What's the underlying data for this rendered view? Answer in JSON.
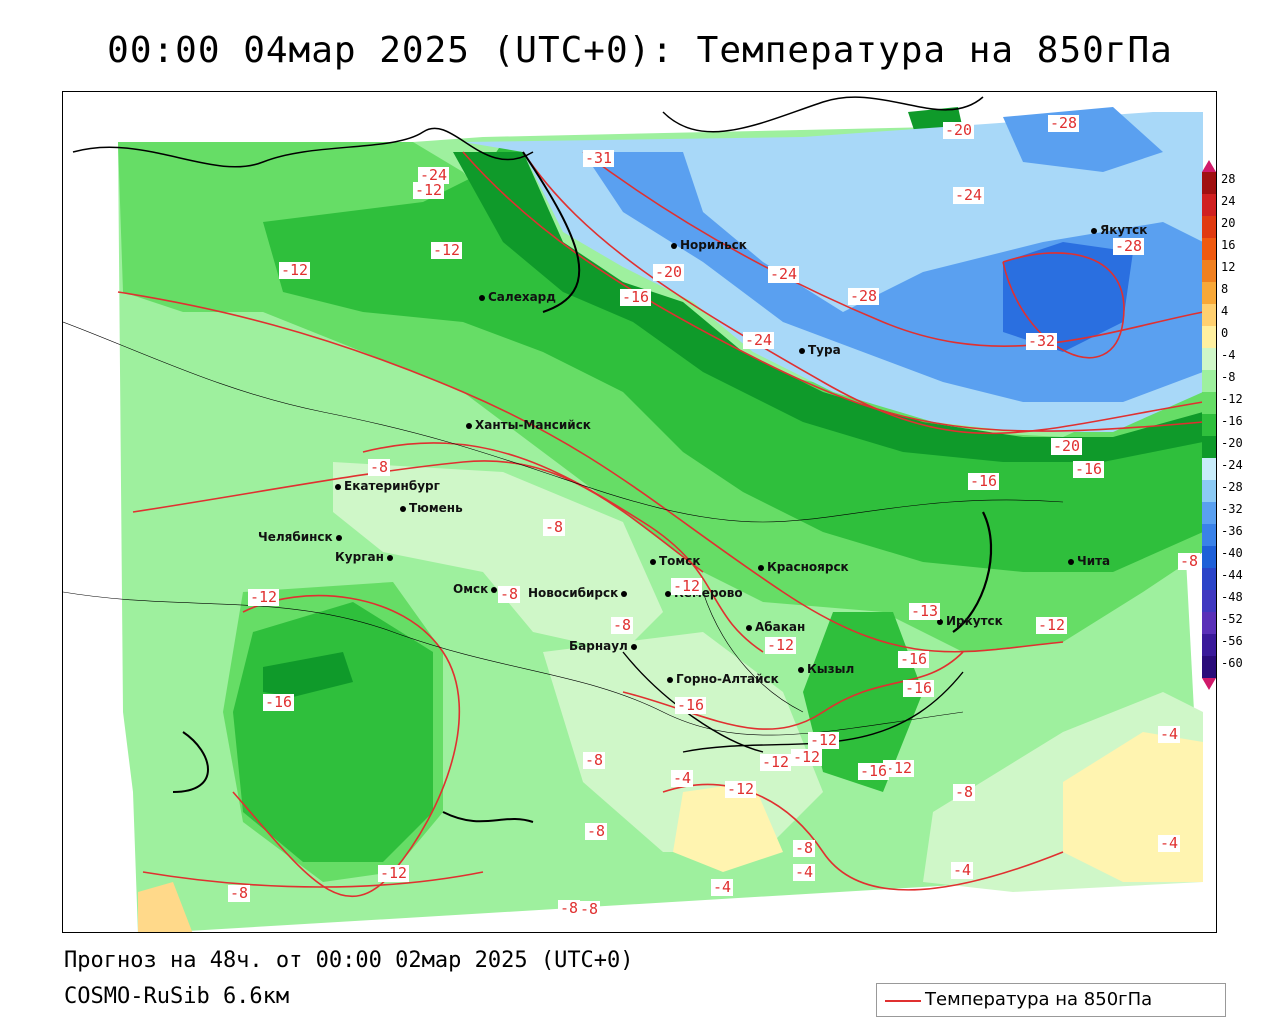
{
  "header": {
    "title": "00:00 04мар 2025 (UTC+0): Температура на 850гПа"
  },
  "footer": {
    "forecast": "Прогноз на 48ч. от 00:00 02мар 2025 (UTC+0)",
    "model": "COSMO-RuSib 6.6км",
    "legend": "Температура на 850гПа"
  },
  "colors": {
    "contour": "#e03030",
    "t_m32": "#2a6fe0",
    "t_m28": "#5aa0f0",
    "t_m24": "#a8d8f8",
    "t_m20": "#0f9a2a",
    "t_m16": "#2fbf3c",
    "t_m12": "#66dd66",
    "t_m8": "#9ef09e",
    "t_m4": "#cff7c8",
    "t_0": "#fff4b0",
    "t_4": "#ffd98a"
  },
  "colorbar": [
    "28",
    "24",
    "20",
    "16",
    "12",
    "8",
    "4",
    "0",
    "-4",
    "-8",
    "-12",
    "-16",
    "-20",
    "-24",
    "-28",
    "-32",
    "-36",
    "-40",
    "-44",
    "-48",
    "-52",
    "-56",
    "-60"
  ],
  "cities": [
    {
      "name": "Норильск"
    },
    {
      "name": "Якутск"
    },
    {
      "name": "Салехард"
    },
    {
      "name": "Тура"
    },
    {
      "name": "Ханты-Мансийск"
    },
    {
      "name": "Екатеринбург"
    },
    {
      "name": "Тюмень"
    },
    {
      "name": "Челябинск"
    },
    {
      "name": "Курган"
    },
    {
      "name": "Омск"
    },
    {
      "name": "Томск"
    },
    {
      "name": "Новосибирск"
    },
    {
      "name": "Кемерово"
    },
    {
      "name": "Красноярск"
    },
    {
      "name": "Барнаул"
    },
    {
      "name": "Абакан"
    },
    {
      "name": "Иркутск"
    },
    {
      "name": "Чита"
    },
    {
      "name": "Кызыл"
    },
    {
      "name": "Горно-Алтайск"
    }
  ],
  "contour_labels": [
    "-20",
    "-28",
    "-31",
    "-24",
    "-12",
    "-12",
    "-20",
    "-24",
    "-28",
    "-28",
    "-16",
    "-24",
    "-32",
    "-12",
    "-24",
    "-20",
    "-16",
    "-8",
    "-16",
    "-8",
    "-12",
    "-8",
    "-12",
    "-8",
    "-13",
    "-16",
    "-12",
    "-8",
    "-12",
    "-16",
    "-16",
    "-12",
    "-16",
    "-12",
    "-8",
    "-4",
    "-12",
    "-12",
    "-16",
    "-12",
    "-8",
    "-8",
    "-4",
    "-4",
    "-8",
    "-4",
    "-12",
    "-8",
    "-4",
    "-8",
    "-8",
    "-4"
  ]
}
